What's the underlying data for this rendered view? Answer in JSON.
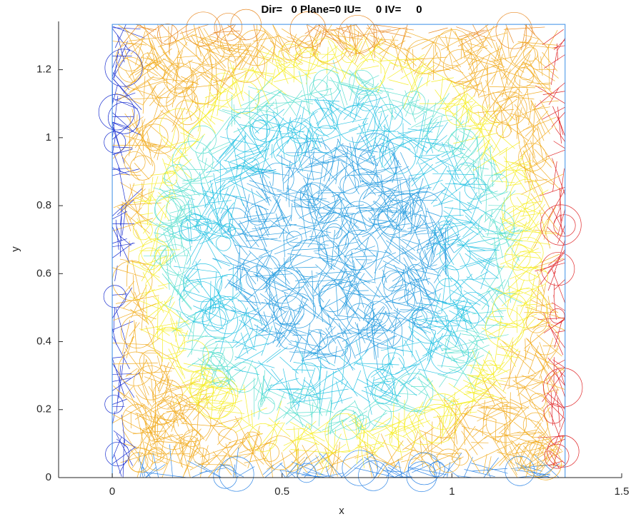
{
  "chart_data": {
    "type": "mesh",
    "title": "Dir=   0 Plane=0 IU=     0 IV=     0",
    "x_label": "x",
    "y_label": "y",
    "xlim": [
      -0.158,
      1.5
    ],
    "ylim": [
      0,
      1.342
    ],
    "xticks": [
      0,
      0.5,
      1,
      1.5
    ],
    "yticks": [
      0,
      0.2,
      0.4,
      0.6,
      0.8,
      1,
      1.2
    ]
  }
}
